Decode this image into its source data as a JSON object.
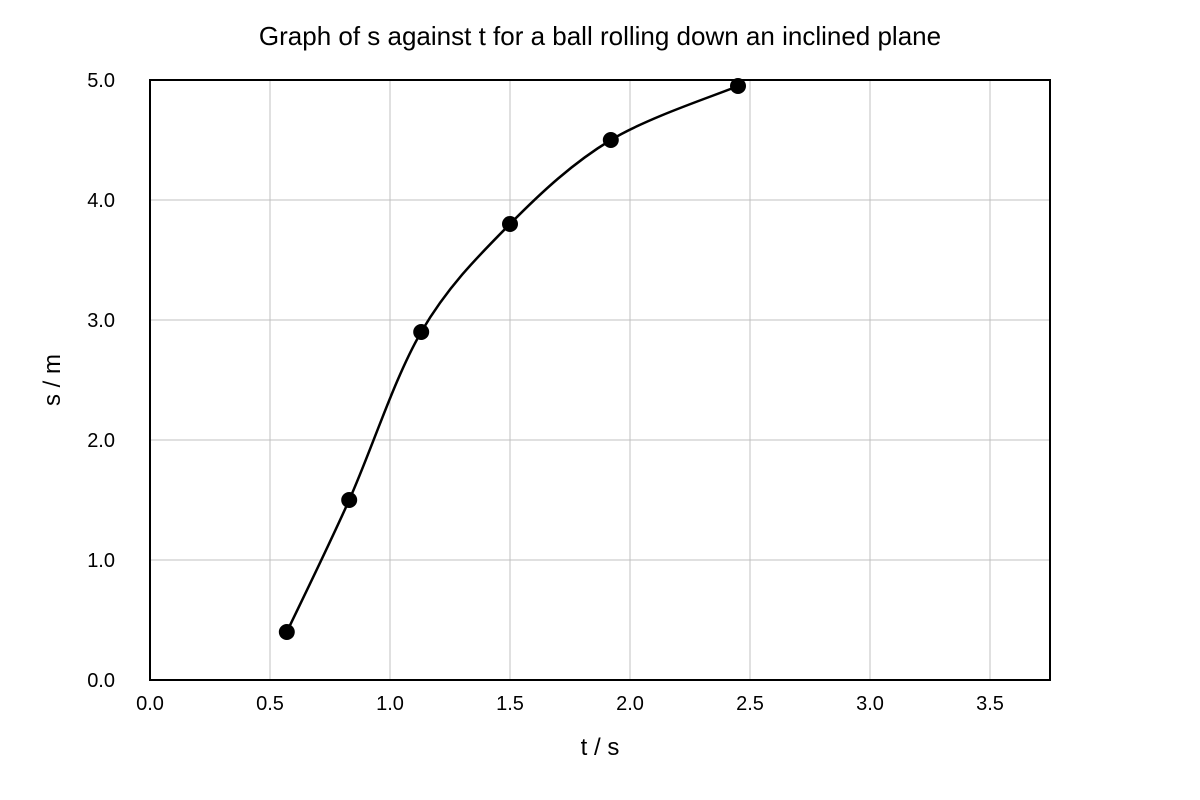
{
  "chart_data": {
    "type": "scatter",
    "title": "Graph of s against t for a ball rolling down an inclined plane",
    "xlabel": "t / s",
    "ylabel": "s / m",
    "xlim": [
      0.0,
      3.75
    ],
    "ylim": [
      0.0,
      5.0
    ],
    "grid": true,
    "smooth_line": true,
    "x_ticks": [
      "0.0",
      "0.5",
      "1.0",
      "1.5",
      "2.0",
      "2.5",
      "3.0",
      "3.5"
    ],
    "y_ticks": [
      "0.0",
      "1.0",
      "2.0",
      "3.0",
      "4.0",
      "5.0"
    ],
    "series": [
      {
        "color": "#000000",
        "points": [
          {
            "x": 0.57,
            "y": 0.4
          },
          {
            "x": 0.83,
            "y": 1.5
          },
          {
            "x": 1.13,
            "y": 2.9
          },
          {
            "x": 1.5,
            "y": 3.8
          },
          {
            "x": 1.92,
            "y": 4.5
          },
          {
            "x": 2.45,
            "y": 4.95
          }
        ]
      }
    ]
  }
}
